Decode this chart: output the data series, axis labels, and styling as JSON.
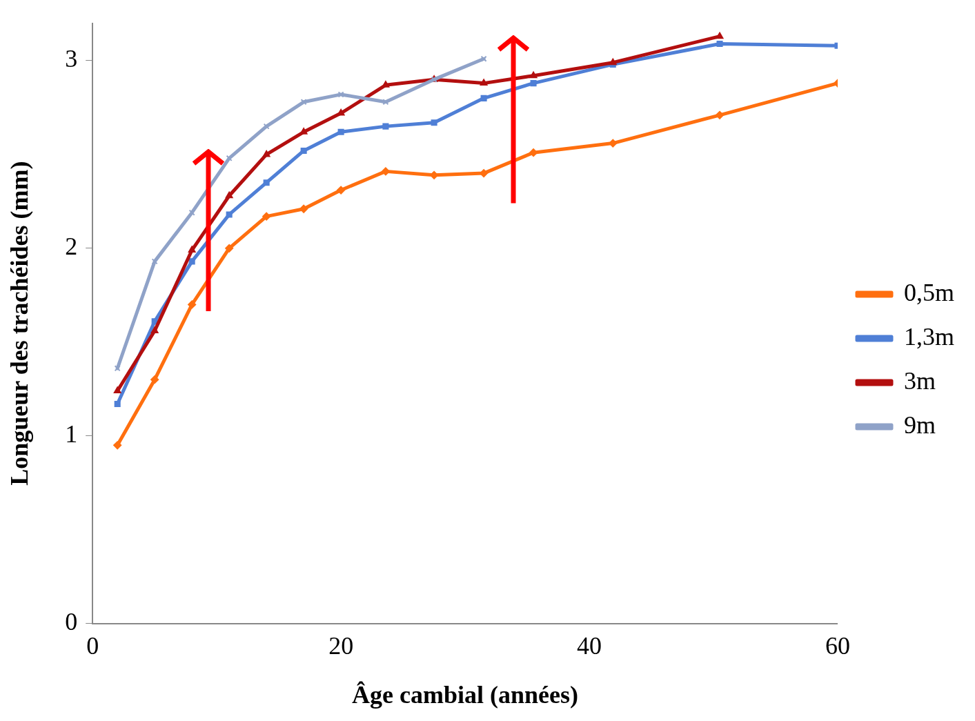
{
  "chart_data": {
    "type": "line",
    "xlabel": "Âge cambial (années)",
    "ylabel": "Longueur des trachéides (mm)",
    "xlim": [
      0,
      60
    ],
    "xticks": [
      0,
      20,
      40,
      60
    ],
    "ylim": [
      0,
      3.2
    ],
    "yticks": [
      0,
      1,
      2,
      3
    ],
    "grid": false,
    "legend": "right",
    "series": [
      {
        "name": "0,5m",
        "color": "#ff6f0f",
        "marker": "diamond",
        "x": [
          2,
          5,
          8,
          11,
          14,
          17,
          20,
          23.6,
          27.5,
          31.5,
          35.5,
          41.9,
          50.5,
          60
        ],
        "values": [
          0.95,
          1.3,
          1.7,
          2.0,
          2.17,
          2.21,
          2.31,
          2.41,
          2.39,
          2.4,
          2.51,
          2.56,
          2.71,
          2.88
        ]
      },
      {
        "name": "1,3m",
        "color": "#4f7fd6",
        "marker": "square",
        "x": [
          2,
          5,
          8,
          11,
          14,
          17,
          20,
          23.6,
          27.5,
          31.5,
          35.5,
          41.9,
          50.5,
          60
        ],
        "values": [
          1.17,
          1.61,
          1.93,
          2.18,
          2.35,
          2.52,
          2.62,
          2.65,
          2.67,
          2.8,
          2.88,
          2.98,
          3.09,
          3.08
        ]
      },
      {
        "name": "3m",
        "color": "#b30f0f",
        "marker": "triangle",
        "x": [
          2,
          5,
          8,
          11,
          14,
          17,
          20,
          23.6,
          27.5,
          31.5,
          35.5,
          41.9,
          50.5
        ],
        "values": [
          1.24,
          1.56,
          1.99,
          2.28,
          2.5,
          2.62,
          2.72,
          2.87,
          2.9,
          2.88,
          2.92,
          2.99,
          3.13
        ]
      },
      {
        "name": "9m",
        "color": "#8fa2c8",
        "marker": "cross",
        "x": [
          2,
          5,
          8,
          11,
          14,
          17,
          20,
          23.6,
          27.5,
          31.5
        ],
        "values": [
          1.36,
          1.93,
          2.19,
          2.48,
          2.65,
          2.78,
          2.82,
          2.78,
          2.9,
          3.01
        ]
      }
    ]
  }
}
